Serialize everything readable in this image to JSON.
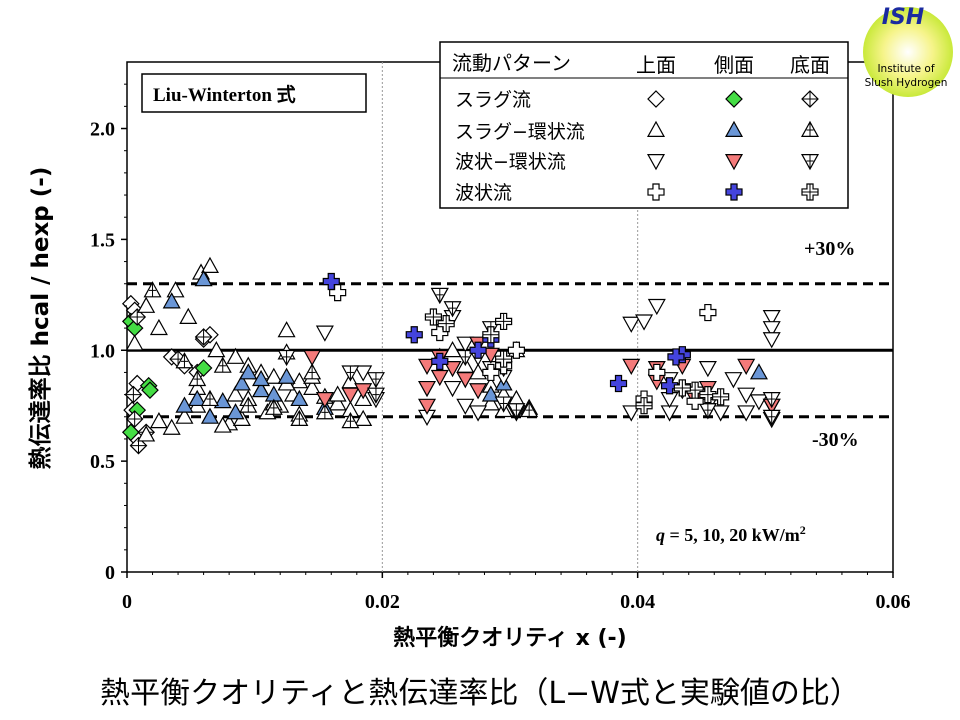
{
  "caption": "熱平衡クオリティと熱伝達率比（L−W式と実験値の比）",
  "logo": {
    "top_text": "ISH",
    "line1": "Institute of",
    "line2": "Slush Hydrogen"
  },
  "chart_data": {
    "type": "scatter",
    "method_label": "Liu-Winterton 式",
    "condition_label": "q = 5, 10, 20 kW/m2",
    "xlabel": "熱平衡クオリティ x (-)",
    "ylabel": "熱伝達率比 hcal / hexp (-)",
    "xlim": [
      0,
      0.06
    ],
    "ylim": [
      0,
      2.3
    ],
    "xticks": [
      "0",
      "0.02",
      "0.04",
      "0.06"
    ],
    "yticks": [
      "0",
      "0.5",
      "1.0",
      "1.5",
      "2.0"
    ],
    "ref_lines": [
      {
        "y": 1.0,
        "style": "solid"
      },
      {
        "y": 1.3,
        "style": "dashed",
        "label": "+30%"
      },
      {
        "y": 0.7,
        "style": "dashed",
        "label": "-30%"
      }
    ],
    "legend": {
      "header": "流動パターン",
      "columns": [
        "上面",
        "側面",
        "底面"
      ],
      "rows": [
        {
          "name": "スラグ流",
          "marker": "diamond"
        },
        {
          "name": "スラグ−環状流",
          "marker": "triangle-up"
        },
        {
          "name": "波状−環状流",
          "marker": "triangle-down"
        },
        {
          "name": "波状流",
          "marker": "cross"
        }
      ],
      "position": "top-right"
    },
    "colors": {
      "side_triangle_up": "#6a96d6",
      "side_triangle_down": "#f47a7a",
      "side_diamond": "#44dd44",
      "side_cross": "#4444dd"
    },
    "series": [
      {
        "name": "スラグ流 上面",
        "marker": "diamond",
        "position": "top",
        "points": [
          [
            0.0003,
            1.21
          ],
          [
            0.0006,
            1.18
          ],
          [
            0.0008,
            0.85
          ],
          [
            0.0004,
            0.73
          ],
          [
            0.0008,
            0.6
          ],
          [
            0.0035,
            0.97
          ],
          [
            0.0045,
            0.93
          ],
          [
            0.006,
            1.05
          ],
          [
            0.0065,
            1.07
          ],
          [
            0.0055,
            0.9
          ]
        ]
      },
      {
        "name": "スラグ流 側面",
        "marker": "diamond",
        "position": "side",
        "points": [
          [
            0.0003,
            1.13
          ],
          [
            0.0006,
            1.1
          ],
          [
            0.0008,
            0.73
          ],
          [
            0.0003,
            0.63
          ],
          [
            0.0017,
            0.84
          ],
          [
            0.0018,
            0.82
          ],
          [
            0.006,
            0.92
          ]
        ]
      },
      {
        "name": "スラグ流 底面",
        "marker": "diamond",
        "position": "bottom",
        "points": [
          [
            0.0008,
            1.15
          ],
          [
            0.0006,
            0.69
          ],
          [
            0.0009,
            0.57
          ],
          [
            0.0005,
            0.8
          ],
          [
            0.004,
            0.96
          ],
          [
            0.006,
            1.06
          ],
          [
            0.0015,
            0.63
          ]
        ]
      },
      {
        "name": "スラグ−環状流 上面",
        "marker": "triangle-up",
        "position": "top",
        "points": [
          [
            0.0006,
            1.03
          ],
          [
            0.0015,
            1.2
          ],
          [
            0.0025,
            1.1
          ],
          [
            0.0038,
            1.27
          ],
          [
            0.0048,
            1.15
          ],
          [
            0.0058,
            1.35
          ],
          [
            0.0065,
            1.38
          ],
          [
            0.007,
            1.0
          ],
          [
            0.0085,
            0.97
          ],
          [
            0.0095,
            0.93
          ],
          [
            0.0105,
            0.9
          ],
          [
            0.0115,
            0.88
          ],
          [
            0.0125,
            0.99
          ],
          [
            0.0135,
            0.86
          ],
          [
            0.0145,
            0.83
          ],
          [
            0.0155,
            0.79
          ],
          [
            0.0165,
            0.76
          ],
          [
            0.0175,
            0.73
          ],
          [
            0.0185,
            0.69
          ],
          [
            0.008,
            0.67
          ],
          [
            0.009,
            0.69
          ],
          [
            0.011,
            0.72
          ],
          [
            0.012,
            0.75
          ],
          [
            0.013,
            0.8
          ],
          [
            0.0045,
            0.7
          ],
          [
            0.0055,
            0.75
          ],
          [
            0.0025,
            0.68
          ],
          [
            0.0035,
            0.65
          ],
          [
            0.0015,
            0.62
          ],
          [
            0.0075,
            0.66
          ],
          [
            0.0085,
            0.8
          ],
          [
            0.0105,
            0.82
          ],
          [
            0.0125,
            0.85
          ],
          [
            0.0145,
            0.88
          ],
          [
            0.0165,
            0.8
          ],
          [
            0.0175,
            0.86
          ],
          [
            0.0185,
            0.78
          ],
          [
            0.0245,
            0.97
          ],
          [
            0.0255,
            1.0
          ],
          [
            0.0265,
            0.93
          ],
          [
            0.0275,
            0.9
          ],
          [
            0.0285,
            0.84
          ],
          [
            0.0295,
            0.8
          ],
          [
            0.0305,
            0.78
          ],
          [
            0.0315,
            0.74
          ],
          [
            0.0285,
            0.76
          ],
          [
            0.0295,
            0.73
          ],
          [
            0.0305,
            1.0
          ],
          [
            0.0125,
            1.09
          ],
          [
            0.0135,
            0.71
          ],
          [
            0.0095,
            0.78
          ],
          [
            0.0115,
            0.76
          ],
          [
            0.0055,
            0.83
          ]
        ]
      },
      {
        "name": "スラグ−環状流 側面",
        "marker": "triangle-up",
        "position": "side",
        "points": [
          [
            0.0035,
            1.22
          ],
          [
            0.006,
            1.32
          ],
          [
            0.0075,
            0.77
          ],
          [
            0.009,
            0.85
          ],
          [
            0.0105,
            0.82
          ],
          [
            0.0115,
            0.8
          ],
          [
            0.0125,
            0.88
          ],
          [
            0.0085,
            0.72
          ],
          [
            0.0065,
            0.7
          ],
          [
            0.0045,
            0.75
          ],
          [
            0.0055,
            0.78
          ],
          [
            0.0135,
            0.78
          ],
          [
            0.0155,
            0.74
          ],
          [
            0.0095,
            0.9
          ],
          [
            0.0105,
            0.87
          ],
          [
            0.0295,
            0.85
          ],
          [
            0.0285,
            0.8
          ],
          [
            0.0495,
            0.9
          ]
        ]
      },
      {
        "name": "スラグ−環状流 底面",
        "marker": "triangle-up",
        "position": "bottom",
        "points": [
          [
            0.002,
            1.27
          ],
          [
            0.0045,
            0.95
          ],
          [
            0.0055,
            0.87
          ],
          [
            0.0065,
            0.78
          ],
          [
            0.0075,
            0.93
          ],
          [
            0.0095,
            0.75
          ],
          [
            0.0115,
            0.74
          ],
          [
            0.0135,
            0.69
          ],
          [
            0.0155,
            0.72
          ],
          [
            0.0175,
            0.68
          ],
          [
            0.0315,
            0.73
          ],
          [
            0.0145,
            0.9
          ]
        ]
      },
      {
        "name": "波状−環状流 上面",
        "marker": "triangle-down",
        "position": "top",
        "points": [
          [
            0.0155,
            1.08
          ],
          [
            0.0185,
            0.9
          ],
          [
            0.0195,
            0.78
          ],
          [
            0.0245,
            1.25
          ],
          [
            0.0255,
            1.15
          ],
          [
            0.0265,
            1.03
          ],
          [
            0.0275,
            0.97
          ],
          [
            0.0285,
            0.92
          ],
          [
            0.0295,
            0.88
          ],
          [
            0.0255,
            0.83
          ],
          [
            0.0265,
            0.75
          ],
          [
            0.0275,
            0.72
          ],
          [
            0.0235,
            0.7
          ],
          [
            0.0305,
            0.72
          ],
          [
            0.0395,
            0.72
          ],
          [
            0.0395,
            1.12
          ],
          [
            0.0405,
            1.13
          ],
          [
            0.0415,
            1.2
          ],
          [
            0.0425,
            0.87
          ],
          [
            0.0435,
            0.82
          ],
          [
            0.0445,
            0.8
          ],
          [
            0.0455,
            0.75
          ],
          [
            0.0465,
            0.72
          ],
          [
            0.0475,
            0.87
          ],
          [
            0.0485,
            0.8
          ],
          [
            0.0495,
            0.77
          ],
          [
            0.0505,
            0.75
          ],
          [
            0.0505,
            1.15
          ],
          [
            0.0505,
            1.1
          ],
          [
            0.0505,
            1.05
          ],
          [
            0.0425,
            0.72
          ],
          [
            0.0455,
            0.73
          ],
          [
            0.0485,
            0.72
          ],
          [
            0.0455,
            0.92
          ],
          [
            0.0425,
            0.78
          ],
          [
            0.0505,
            0.69
          ]
        ]
      },
      {
        "name": "波状−環状流 側面",
        "marker": "triangle-down",
        "position": "side",
        "points": [
          [
            0.0145,
            0.97
          ],
          [
            0.0155,
            0.78
          ],
          [
            0.0175,
            0.8
          ],
          [
            0.0185,
            0.82
          ],
          [
            0.0235,
            0.93
          ],
          [
            0.0245,
            0.97
          ],
          [
            0.0255,
            0.92
          ],
          [
            0.0245,
            0.88
          ],
          [
            0.0235,
            0.83
          ],
          [
            0.0235,
            0.75
          ],
          [
            0.0265,
            0.87
          ],
          [
            0.0275,
            1.03
          ],
          [
            0.0285,
            0.98
          ],
          [
            0.0295,
            0.92
          ],
          [
            0.0275,
            0.82
          ],
          [
            0.0395,
            0.93
          ],
          [
            0.0415,
            0.92
          ],
          [
            0.0435,
            0.93
          ],
          [
            0.0455,
            0.83
          ],
          [
            0.0485,
            0.93
          ],
          [
            0.0505,
            0.75
          ],
          [
            0.0445,
            0.78
          ],
          [
            0.0415,
            0.86
          ]
        ]
      },
      {
        "name": "波状−環状流 底面",
        "marker": "triangle-down",
        "position": "bottom",
        "points": [
          [
            0.0125,
            0.97
          ],
          [
            0.0175,
            0.9
          ],
          [
            0.0195,
            0.87
          ],
          [
            0.0245,
            1.25
          ],
          [
            0.0255,
            1.19
          ],
          [
            0.0265,
            0.97
          ],
          [
            0.0285,
            1.1
          ],
          [
            0.0295,
            0.76
          ],
          [
            0.0305,
            0.73
          ],
          [
            0.0505,
            0.78
          ],
          [
            0.0505,
            0.7
          ],
          [
            0.0455,
            0.73
          ],
          [
            0.0195,
            0.8
          ]
        ]
      },
      {
        "name": "波状流 上面",
        "marker": "cross",
        "position": "top",
        "points": [
          [
            0.0165,
            1.26
          ],
          [
            0.0245,
            1.08
          ],
          [
            0.0305,
            1.0
          ],
          [
            0.0295,
            0.93
          ],
          [
            0.0285,
            0.9
          ],
          [
            0.0405,
            0.78
          ],
          [
            0.0445,
            0.77
          ],
          [
            0.0455,
            1.17
          ],
          [
            0.0435,
            0.83
          ],
          [
            0.0415,
            0.9
          ]
        ]
      },
      {
        "name": "波状流 側面",
        "marker": "cross",
        "position": "side",
        "points": [
          [
            0.016,
            1.31
          ],
          [
            0.0225,
            1.07
          ],
          [
            0.0245,
            0.95
          ],
          [
            0.0275,
            1.0
          ],
          [
            0.0285,
            1.05
          ],
          [
            0.0385,
            0.85
          ],
          [
            0.0425,
            0.84
          ],
          [
            0.0435,
            0.98
          ],
          [
            0.043,
            0.97
          ]
        ]
      },
      {
        "name": "波状流 底面",
        "marker": "cross",
        "position": "bottom",
        "points": [
          [
            0.024,
            1.15
          ],
          [
            0.025,
            1.12
          ],
          [
            0.0295,
            1.13
          ],
          [
            0.0285,
            1.07
          ],
          [
            0.0295,
            0.96
          ],
          [
            0.0405,
            0.75
          ],
          [
            0.0445,
            0.82
          ],
          [
            0.0455,
            0.8
          ],
          [
            0.0465,
            0.79
          ],
          [
            0.0435,
            0.83
          ]
        ]
      }
    ]
  }
}
